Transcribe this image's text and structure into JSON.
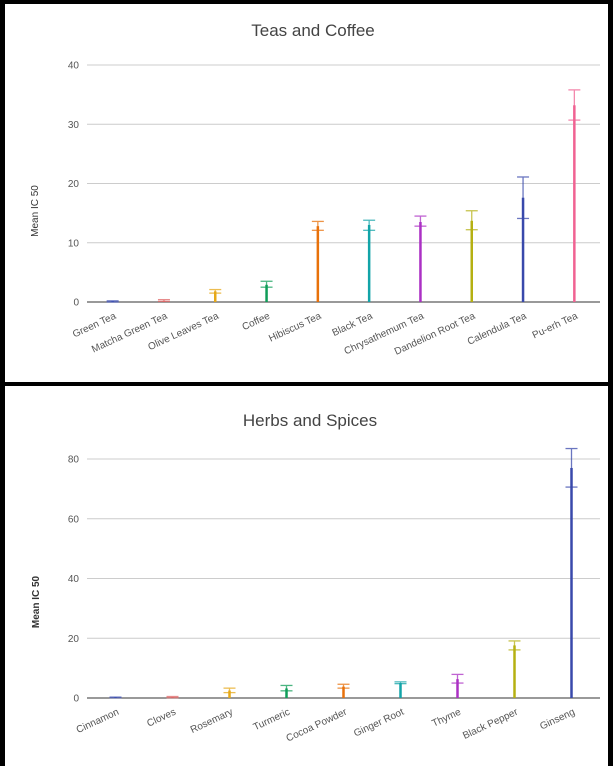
{
  "chart_data": [
    {
      "type": "bar",
      "title": "Teas and Coffee",
      "ylabel": "Mean IC 50",
      "xlabel": "",
      "ylim": [
        0,
        40
      ],
      "yticks": [
        0,
        10,
        20,
        30,
        40
      ],
      "grid": true,
      "categories": [
        "Green Tea",
        "Matcha Green Tea",
        "Olive Leaves Tea",
        "Coffee",
        "Hibiscus Tea",
        "Black Tea",
        "Chrysathemum Tea",
        "Dandelion Root Tea",
        "Calendula Tea",
        "Pu-erh Tea"
      ],
      "values": [
        0.1,
        0.2,
        1.8,
        2.9,
        12.8,
        13.0,
        13.5,
        13.7,
        17.6,
        33.2
      ],
      "error_low": [
        0.0,
        0.1,
        1.5,
        2.5,
        12.1,
        12.1,
        12.8,
        12.2,
        14.1,
        30.7
      ],
      "error_high": [
        0.2,
        0.4,
        2.1,
        3.5,
        13.6,
        13.8,
        14.5,
        15.4,
        21.1,
        35.8
      ],
      "colors": [
        "#3f51b5",
        "#e06666",
        "#e6a817",
        "#0f9d58",
        "#e8710a",
        "#12a4a8",
        "#ab30c4",
        "#b5b012",
        "#3949ab",
        "#f06292"
      ]
    },
    {
      "type": "bar",
      "title": "Herbs and Spices",
      "ylabel": "Mean IC 50",
      "xlabel": "",
      "ylim": [
        0,
        80
      ],
      "yticks": [
        0,
        20,
        40,
        60,
        80
      ],
      "grid": true,
      "categories": [
        "Cinnamon",
        "Cloves",
        "Rosemary",
        "Turmeric",
        "Cocoa Powder",
        "Ginger Root",
        "Thyme",
        "Black Pepper",
        "Ginseng"
      ],
      "values": [
        0.2,
        0.3,
        2.5,
        3.2,
        3.8,
        5.0,
        6.3,
        17.6,
        77.0
      ],
      "error_low": [
        0.1,
        0.1,
        1.8,
        2.4,
        3.3,
        4.8,
        5.0,
        16.1,
        70.6
      ],
      "error_high": [
        0.3,
        0.5,
        3.3,
        4.2,
        4.6,
        5.4,
        7.9,
        19.1,
        83.5
      ],
      "colors": [
        "#3f51b5",
        "#e06666",
        "#e6a817",
        "#0f9d58",
        "#e8710a",
        "#12a4a8",
        "#ab30c4",
        "#b5b012",
        "#3949ab"
      ]
    }
  ]
}
